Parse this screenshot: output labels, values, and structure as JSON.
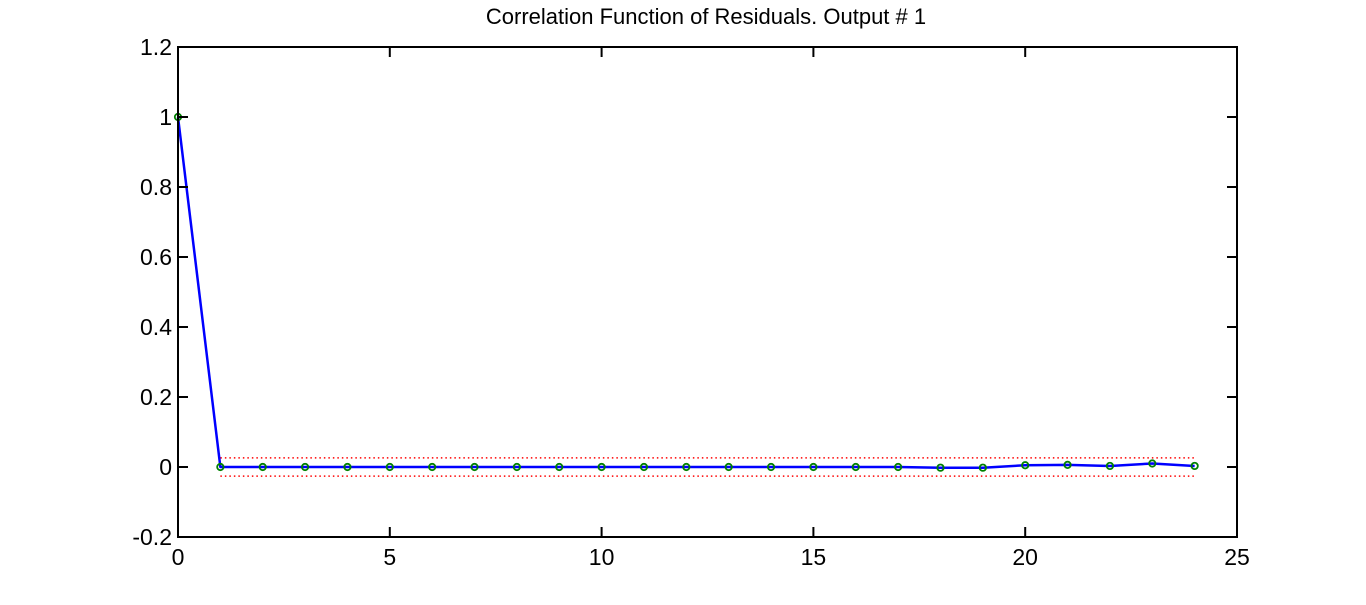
{
  "chart_data": {
    "type": "line",
    "title": "Correlation Function of Residuals. Output # 1",
    "xlabel": "",
    "ylabel": "",
    "xlim": [
      0,
      25
    ],
    "ylim": [
      -0.2,
      1.2
    ],
    "xticks": [
      "0",
      "5",
      "10",
      "15",
      "20",
      "25"
    ],
    "yticks": [
      "-0.2",
      "0",
      "0.2",
      "0.4",
      "0.6",
      "0.8",
      "1",
      "1.2"
    ],
    "grid": false,
    "legend": "none",
    "x": [
      0,
      1,
      2,
      3,
      4,
      5,
      6,
      7,
      8,
      9,
      10,
      11,
      12,
      13,
      14,
      15,
      16,
      17,
      18,
      19,
      20,
      21,
      22,
      23,
      24
    ],
    "series": [
      {
        "values": [
          1.0,
          0.0,
          0.0,
          0.0,
          0.0,
          0.0,
          0.0,
          0.0,
          0.0,
          0.0,
          0.0,
          0.0,
          0.0,
          0.0,
          0.0,
          0.0,
          0.0,
          0.0,
          -0.002,
          -0.002,
          0.005,
          0.006,
          0.003,
          0.01,
          0.003
        ],
        "line_color": "#0000ff",
        "marker_color": "#008000",
        "marker": "circle"
      }
    ],
    "confidence_band": {
      "upper": 0.026,
      "lower": -0.026,
      "x_range": [
        1,
        24
      ],
      "color": "#ff0000",
      "style": "dotted"
    }
  }
}
